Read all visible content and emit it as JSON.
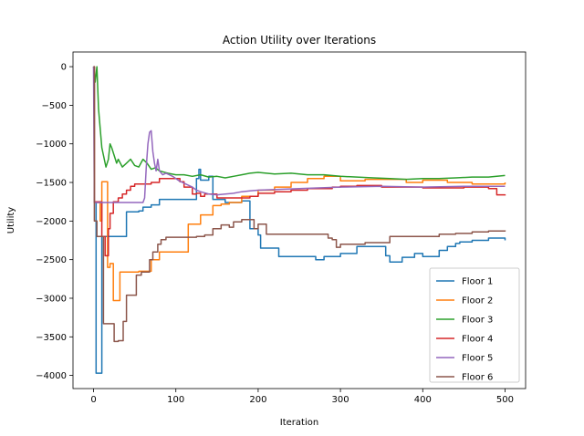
{
  "chart_data": {
    "type": "line",
    "title": "Action Utility over Iterations",
    "xlabel": "Iteration",
    "ylabel": "Utility",
    "xlim": [
      -25,
      525
    ],
    "ylim": [
      -4170,
      190
    ],
    "xticks": [
      0,
      100,
      200,
      300,
      400,
      500
    ],
    "xtick_labels": [
      "0",
      "100",
      "200",
      "300",
      "400",
      "500"
    ],
    "yticks": [
      0,
      -500,
      -1000,
      -1500,
      -2000,
      -2500,
      -3000,
      -3500,
      -4000
    ],
    "ytick_labels": [
      "0",
      "−500",
      "−1000",
      "−1500",
      "−2000",
      "−2500",
      "−3000",
      "−3500",
      "−4000"
    ],
    "grid": false,
    "legend_position": "lower-right",
    "series": [
      {
        "name": "Floor 1",
        "color": "#1f77b4",
        "step": true,
        "x": [
          0,
          1,
          3,
          6,
          10,
          30,
          40,
          50,
          55,
          60,
          65,
          70,
          80,
          90,
          110,
          125,
          128,
          130,
          140,
          145,
          160,
          180,
          190,
          200,
          203,
          215,
          225,
          250,
          270,
          280,
          300,
          320,
          340,
          355,
          360,
          375,
          390,
          400,
          420,
          430,
          440,
          445,
          460,
          480,
          500
        ],
        "values": [
          0,
          -1760,
          -3970,
          -3970,
          -2200,
          -2200,
          -1880,
          -1880,
          -1870,
          -1820,
          -1820,
          -1790,
          -1720,
          -1720,
          -1720,
          -1450,
          -1330,
          -1470,
          -1420,
          -1720,
          -1760,
          -1740,
          -2100,
          -2180,
          -2350,
          -2350,
          -2460,
          -2460,
          -2500,
          -2460,
          -2420,
          -2330,
          -2330,
          -2450,
          -2530,
          -2470,
          -2420,
          -2460,
          -2380,
          -2330,
          -2290,
          -2270,
          -2250,
          -2220,
          -2250
        ]
      },
      {
        "name": "Floor 2",
        "color": "#ff7f0e",
        "step": true,
        "x": [
          0,
          1,
          6,
          8,
          10,
          14,
          17,
          20,
          24,
          28,
          32,
          45,
          55,
          70,
          80,
          90,
          100,
          115,
          120,
          130,
          145,
          155,
          165,
          180,
          200,
          220,
          240,
          260,
          280,
          300,
          330,
          360,
          380,
          400,
          430,
          460,
          500
        ],
        "values": [
          0,
          -1760,
          -1760,
          -2000,
          -1490,
          -1490,
          -2600,
          -2550,
          -3030,
          -3030,
          -2660,
          -2660,
          -2650,
          -2500,
          -2400,
          -2400,
          -2400,
          -2040,
          -2040,
          -1920,
          -1800,
          -1780,
          -1760,
          -1680,
          -1600,
          -1560,
          -1500,
          -1450,
          -1420,
          -1480,
          -1460,
          -1460,
          -1500,
          -1470,
          -1500,
          -1520,
          -1500
        ]
      },
      {
        "name": "Floor 3",
        "color": "#2ca02c",
        "step": false,
        "x": [
          0,
          2,
          4,
          6,
          8,
          10,
          12,
          15,
          18,
          20,
          22,
          25,
          28,
          30,
          35,
          40,
          45,
          50,
          55,
          60,
          65,
          70,
          75,
          80,
          90,
          100,
          110,
          120,
          130,
          140,
          150,
          160,
          170,
          180,
          190,
          200,
          220,
          240,
          260,
          280,
          300,
          320,
          340,
          360,
          380,
          400,
          420,
          440,
          460,
          480,
          500
        ],
        "values": [
          0,
          -200,
          0,
          -550,
          -800,
          -1050,
          -1150,
          -1300,
          -1200,
          -1000,
          -1050,
          -1150,
          -1250,
          -1200,
          -1300,
          -1250,
          -1200,
          -1280,
          -1300,
          -1200,
          -1250,
          -1330,
          -1310,
          -1350,
          -1380,
          -1400,
          -1400,
          -1420,
          -1400,
          -1430,
          -1420,
          -1440,
          -1420,
          -1400,
          -1380,
          -1370,
          -1390,
          -1380,
          -1400,
          -1400,
          -1420,
          -1430,
          -1440,
          -1450,
          -1460,
          -1450,
          -1450,
          -1440,
          -1430,
          -1430,
          -1410
        ]
      },
      {
        "name": "Floor 4",
        "color": "#d62728",
        "step": true,
        "x": [
          0,
          1,
          8,
          10,
          14,
          18,
          20,
          24,
          30,
          35,
          40,
          45,
          50,
          60,
          70,
          80,
          100,
          105,
          110,
          120,
          125,
          130,
          135,
          150,
          160,
          190,
          200,
          220,
          240,
          260,
          290,
          300,
          320,
          350,
          400,
          450,
          480,
          490,
          500
        ],
        "values": [
          0,
          -1750,
          -1750,
          -2200,
          -2450,
          -2100,
          -1900,
          -1750,
          -1700,
          -1650,
          -1600,
          -1550,
          -1520,
          -1520,
          -1500,
          -1450,
          -1450,
          -1490,
          -1560,
          -1650,
          -1640,
          -1680,
          -1650,
          -1700,
          -1700,
          -1680,
          -1640,
          -1620,
          -1600,
          -1580,
          -1560,
          -1550,
          -1540,
          -1560,
          -1570,
          -1560,
          -1580,
          -1660,
          -1670
        ]
      },
      {
        "name": "Floor 5",
        "color": "#9467bd",
        "step": false,
        "x": [
          0,
          1,
          2,
          3,
          4,
          10,
          20,
          30,
          40,
          50,
          60,
          62,
          64,
          66,
          68,
          70,
          72,
          74,
          76,
          78,
          80,
          84,
          88,
          92,
          96,
          100,
          104,
          108,
          112,
          116,
          120,
          125,
          130,
          140,
          150,
          160,
          170,
          180,
          190,
          200,
          250,
          300,
          350,
          400,
          450,
          500
        ],
        "values": [
          0,
          -1760,
          -1760,
          -1760,
          -1760,
          -1760,
          -1760,
          -1760,
          -1760,
          -1760,
          -1760,
          -1700,
          -1300,
          -1000,
          -850,
          -830,
          -1100,
          -1250,
          -1350,
          -1200,
          -1350,
          -1400,
          -1380,
          -1400,
          -1420,
          -1450,
          -1480,
          -1500,
          -1520,
          -1540,
          -1560,
          -1600,
          -1620,
          -1650,
          -1660,
          -1650,
          -1640,
          -1620,
          -1610,
          -1600,
          -1580,
          -1560,
          -1550,
          -1560,
          -1550,
          -1550
        ]
      },
      {
        "name": "Floor 6",
        "color": "#8c564b",
        "step": true,
        "x": [
          0,
          1,
          4,
          8,
          12,
          20,
          25,
          30,
          36,
          40,
          48,
          52,
          58,
          64,
          68,
          72,
          78,
          82,
          88,
          95,
          110,
          125,
          135,
          145,
          155,
          165,
          170,
          180,
          190,
          195,
          200,
          210,
          230,
          250,
          270,
          285,
          290,
          295,
          300,
          310,
          330,
          360,
          380,
          400,
          420,
          440,
          460,
          480,
          500
        ],
        "values": [
          0,
          -2000,
          -2200,
          -2200,
          -3330,
          -3330,
          -3560,
          -3550,
          -3300,
          -2960,
          -2960,
          -2700,
          -2660,
          -2660,
          -2500,
          -2400,
          -2300,
          -2240,
          -2210,
          -2210,
          -2210,
          -2200,
          -2180,
          -2100,
          -2050,
          -2080,
          -2010,
          -1980,
          -1980,
          -2100,
          -2040,
          -2170,
          -2170,
          -2170,
          -2170,
          -2220,
          -2240,
          -2340,
          -2300,
          -2300,
          -2280,
          -2200,
          -2200,
          -2200,
          -2170,
          -2160,
          -2140,
          -2130,
          -2120
        ]
      }
    ]
  }
}
